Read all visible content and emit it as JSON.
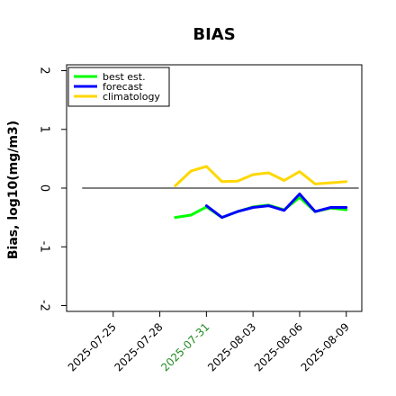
{
  "chart_data": {
    "type": "line",
    "title": "BIAS",
    "ylabel": "Bias, log10(mg/m3)",
    "xlabel": "",
    "ylim": [
      -2.1,
      2.1
    ],
    "yticks": [
      2,
      1,
      0,
      -1,
      -2
    ],
    "ytick_labels": [
      "2",
      "1",
      "0",
      "-1",
      "-2"
    ],
    "xlim": [
      "2025-07-22",
      "2025-08-10"
    ],
    "xticks": [
      "2025-07-25",
      "2025-07-28",
      "2025-07-31",
      "2025-08-03",
      "2025-08-06",
      "2025-08-09"
    ],
    "highlighted_xtick": "2025-07-31",
    "highlight_color": "#228B22",
    "reference_line": 0,
    "grid": false,
    "legend_position": "top-left",
    "x": [
      "2025-07-29",
      "2025-07-30",
      "2025-07-31",
      "2025-08-01",
      "2025-08-02",
      "2025-08-03",
      "2025-08-04",
      "2025-08-05",
      "2025-08-06",
      "2025-08-07",
      "2025-08-08",
      "2025-08-09"
    ],
    "series": [
      {
        "name": "best est.",
        "color": "#00ff00",
        "values": [
          -0.5,
          -0.46,
          -0.32,
          -0.5,
          -0.4,
          -0.32,
          -0.29,
          -0.37,
          -0.16,
          -0.4,
          -0.34,
          -0.37
        ]
      },
      {
        "name": "forecast",
        "color": "#0000ff",
        "values": [
          null,
          null,
          -0.3,
          -0.5,
          -0.4,
          -0.33,
          -0.3,
          -0.38,
          -0.1,
          -0.4,
          -0.33,
          -0.33
        ]
      },
      {
        "name": "climatology",
        "color": "#ffd700",
        "values": [
          0.04,
          0.29,
          0.37,
          0.11,
          0.12,
          0.23,
          0.26,
          0.13,
          0.28,
          0.07,
          0.09,
          0.11
        ]
      }
    ]
  }
}
